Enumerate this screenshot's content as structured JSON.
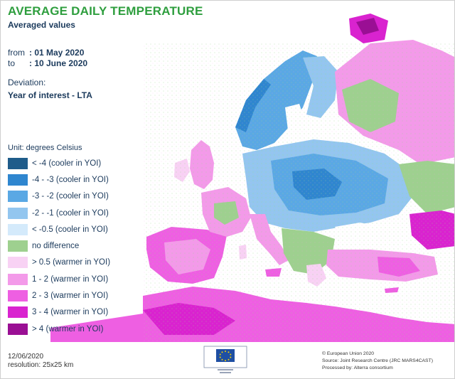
{
  "header": {
    "title": "AVERAGE DAILY TEMPERATURE",
    "subtitle": "Averaged values"
  },
  "period": {
    "from_key": "from",
    "from_value": ": 01 May 2020",
    "to_key": "to",
    "to_value": ": 10 June 2020"
  },
  "deviation": {
    "label": "Deviation:",
    "value": "Year of interest - LTA"
  },
  "legend": {
    "unit": "Unit: degrees Celsius",
    "items": [
      {
        "label": "< -4  (cooler in YOI)",
        "color": "#1f5c8a"
      },
      {
        "label": "-4 - -3  (cooler in YOI)",
        "color": "#2f86cf"
      },
      {
        "label": "-3 - -2  (cooler in YOI)",
        "color": "#5aa8e4"
      },
      {
        "label": "-2 - -1  (cooler in YOI)",
        "color": "#93c6ef"
      },
      {
        "label": "< -0.5  (cooler in YOI)",
        "color": "#d4eafb"
      },
      {
        "label": "no difference",
        "color": "#9ed08f"
      },
      {
        "label": "> 0.5  (warmer in YOI)",
        "color": "#f8d2f4"
      },
      {
        "label": "1 - 2  (warmer in YOI)",
        "color": "#f39ae9"
      },
      {
        "label": "2 - 3  (warmer in YOI)",
        "color": "#ee5fe2"
      },
      {
        "label": "3 - 4  (warmer in YOI)",
        "color": "#d923cf"
      },
      {
        "label": "> 4  (warmer in YOI)",
        "color": "#9a0f94"
      }
    ]
  },
  "footer": {
    "date": "12/06/2020",
    "resolution": "resolution: 25x25 km",
    "copyright": "© European Union 2020",
    "source": "Source: Joint Research Centre (JRC MARS4CAST)",
    "processed": "Processed by: Alterra consortium"
  }
}
